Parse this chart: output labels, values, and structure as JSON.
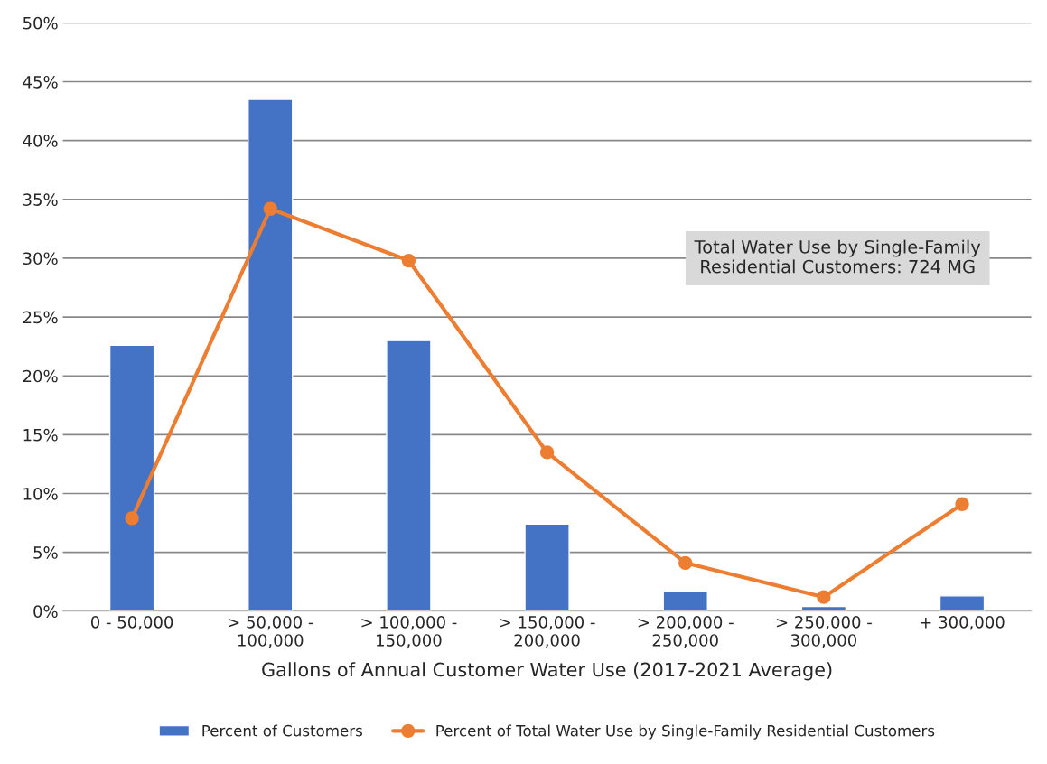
{
  "chart_data": {
    "type": "bar",
    "xlabel": "Gallons of Annual Customer Water Use (2017-2021 Average)",
    "categories": [
      "0 - 50,000",
      "> 50,000 -\n100,000",
      "> 100,000 -\n150,000",
      "> 150,000 -\n200,000",
      "> 200,000 -\n250,000",
      "> 250,000 -\n300,000",
      "+ 300,000"
    ],
    "series": [
      {
        "name": "Percent of Customers",
        "color": "#4472c4",
        "values": [
          22.6,
          43.5,
          23.0,
          7.4,
          1.7,
          0.4,
          1.3
        ]
      },
      {
        "name": "Percent of Total Water Use by Single-Family Residential Customers",
        "type": "line",
        "color": "#ed7d31",
        "marker": "circle",
        "values": [
          7.9,
          34.2,
          29.8,
          13.5,
          4.1,
          1.2,
          9.1
        ]
      }
    ],
    "ylim": [
      0,
      50
    ],
    "yticks": [
      {
        "value": 0,
        "label": "0%"
      },
      {
        "value": 5,
        "label": "5%"
      },
      {
        "value": 10,
        "label": "10%"
      },
      {
        "value": 15,
        "label": "15%"
      },
      {
        "value": 20,
        "label": "20%"
      },
      {
        "value": 25,
        "label": "25%"
      },
      {
        "value": 30,
        "label": "30%"
      },
      {
        "value": 35,
        "label": "35%"
      },
      {
        "value": 40,
        "label": "40%"
      },
      {
        "value": 45,
        "label": "45%"
      },
      {
        "value": 50,
        "label": "50%"
      }
    ],
    "grid": "y",
    "legend": "bottom",
    "annotations": [
      "Total Water Use by Single-Family\nResidential Customers: 724 MG"
    ]
  }
}
